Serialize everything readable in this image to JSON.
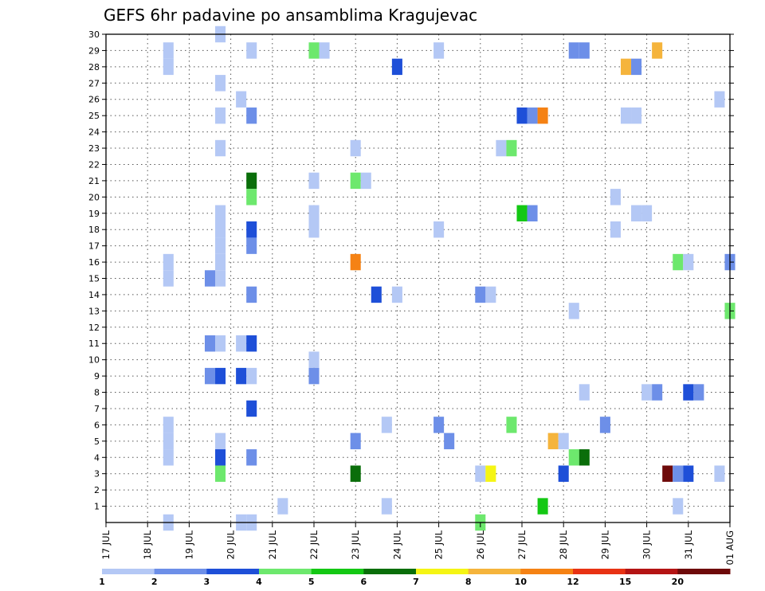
{
  "chart_data": {
    "type": "heatmap",
    "title": "GEFS 6hr padavine po ansamblima Kragujevac",
    "x_tick_labels": [
      "17 JUL",
      "18 JUL",
      "19 JUL",
      "20 JUL",
      "21 JUL",
      "22 JUL",
      "23 JUL",
      "24 JUL",
      "25 JUL",
      "26 JUL",
      "27 JUL",
      "28 JUL",
      "29 JUL",
      "30 JUL",
      "31 JUL",
      "01 AUG"
    ],
    "y_tick_labels": [
      "1",
      "2",
      "3",
      "4",
      "5",
      "6",
      "7",
      "8",
      "9",
      "10",
      "11",
      "12",
      "13",
      "14",
      "15",
      "16",
      "17",
      "18",
      "19",
      "20",
      "21",
      "22",
      "23",
      "24",
      "25",
      "26",
      "27",
      "28",
      "29",
      "30"
    ],
    "x_range_days": [
      0,
      15
    ],
    "y_range": [
      0,
      30
    ],
    "grid": true,
    "colorbar": {
      "labels": [
        "1",
        "2",
        "3",
        "4",
        "5",
        "6",
        "7",
        "8",
        "10",
        "12",
        "15",
        "20"
      ],
      "colors": [
        "#b4c8f5",
        "#6d8fe8",
        "#1e4fd8",
        "#6de86d",
        "#14c814",
        "#0a6e0a",
        "#f5f514",
        "#f5b43c",
        "#f58214",
        "#e83214",
        "#b41414",
        "#6e0a0a"
      ]
    },
    "cells": [
      {
        "d": 1.5,
        "m": 29,
        "c": 0
      },
      {
        "d": 1.5,
        "m": 28,
        "c": 0
      },
      {
        "d": 1.5,
        "m": 16,
        "c": 0
      },
      {
        "d": 1.5,
        "m": 15,
        "c": 0
      },
      {
        "d": 1.5,
        "m": 6,
        "c": 0
      },
      {
        "d": 1.5,
        "m": 5,
        "c": 0
      },
      {
        "d": 1.5,
        "m": 4,
        "c": 0
      },
      {
        "d": 1.5,
        "m": 0,
        "c": 0
      },
      {
        "d": 2.75,
        "m": 30,
        "c": 0
      },
      {
        "d": 2.75,
        "m": 27,
        "c": 0
      },
      {
        "d": 2.75,
        "m": 25,
        "c": 0
      },
      {
        "d": 2.75,
        "m": 23,
        "c": 0
      },
      {
        "d": 2.75,
        "m": 19,
        "c": 0
      },
      {
        "d": 2.75,
        "m": 18,
        "c": 0
      },
      {
        "d": 2.75,
        "m": 17,
        "c": 0
      },
      {
        "d": 2.75,
        "m": 16,
        "c": 0
      },
      {
        "d": 2.75,
        "m": 15,
        "c": 0
      },
      {
        "d": 2.5,
        "m": 15,
        "c": 1
      },
      {
        "d": 2.5,
        "m": 11,
        "c": 1
      },
      {
        "d": 2.75,
        "m": 11,
        "c": 0
      },
      {
        "d": 2.5,
        "m": 9,
        "c": 1
      },
      {
        "d": 2.75,
        "m": 9,
        "c": 2
      },
      {
        "d": 2.75,
        "m": 5,
        "c": 0
      },
      {
        "d": 2.75,
        "m": 4,
        "c": 2
      },
      {
        "d": 2.75,
        "m": 3,
        "c": 3
      },
      {
        "d": 3.25,
        "m": 26,
        "c": 0
      },
      {
        "d": 3.25,
        "m": 11,
        "c": 0
      },
      {
        "d": 3.25,
        "m": 9,
        "c": 2
      },
      {
        "d": 3.25,
        "m": 0,
        "c": 0
      },
      {
        "d": 3.5,
        "m": 29,
        "c": 0
      },
      {
        "d": 3.5,
        "m": 25,
        "c": 1
      },
      {
        "d": 3.5,
        "m": 21,
        "c": 5
      },
      {
        "d": 3.5,
        "m": 20,
        "c": 3
      },
      {
        "d": 3.5,
        "m": 18,
        "c": 2
      },
      {
        "d": 3.5,
        "m": 17,
        "c": 1
      },
      {
        "d": 3.5,
        "m": 14,
        "c": 1
      },
      {
        "d": 3.5,
        "m": 11,
        "c": 2
      },
      {
        "d": 3.5,
        "m": 9,
        "c": 0
      },
      {
        "d": 3.5,
        "m": 7,
        "c": 2
      },
      {
        "d": 3.5,
        "m": 4,
        "c": 1
      },
      {
        "d": 3.5,
        "m": 0,
        "c": 0
      },
      {
        "d": 4.25,
        "m": 1,
        "c": 0
      },
      {
        "d": 5.0,
        "m": 29,
        "c": 3
      },
      {
        "d": 5.25,
        "m": 29,
        "c": 0
      },
      {
        "d": 5.0,
        "m": 21,
        "c": 0
      },
      {
        "d": 5.0,
        "m": 19,
        "c": 0
      },
      {
        "d": 5.0,
        "m": 18,
        "c": 0
      },
      {
        "d": 5.0,
        "m": 10,
        "c": 0
      },
      {
        "d": 5.0,
        "m": 9,
        "c": 1
      },
      {
        "d": 6.0,
        "m": 23,
        "c": 0
      },
      {
        "d": 6.0,
        "m": 21,
        "c": 3
      },
      {
        "d": 6.25,
        "m": 21,
        "c": 0
      },
      {
        "d": 6.0,
        "m": 16,
        "c": 8
      },
      {
        "d": 6.0,
        "m": 5,
        "c": 1
      },
      {
        "d": 6.0,
        "m": 3,
        "c": 5
      },
      {
        "d": 6.5,
        "m": 14,
        "c": 2
      },
      {
        "d": 7.0,
        "m": 28,
        "c": 2
      },
      {
        "d": 7.0,
        "m": 14,
        "c": 0
      },
      {
        "d": 6.75,
        "m": 6,
        "c": 0
      },
      {
        "d": 6.75,
        "m": 1,
        "c": 0
      },
      {
        "d": 8.0,
        "m": 29,
        "c": 0
      },
      {
        "d": 8.0,
        "m": 18,
        "c": 0
      },
      {
        "d": 8.0,
        "m": 6,
        "c": 1
      },
      {
        "d": 8.25,
        "m": 5,
        "c": 1
      },
      {
        "d": 9.0,
        "m": 14,
        "c": 1
      },
      {
        "d": 9.25,
        "m": 14,
        "c": 0
      },
      {
        "d": 9.0,
        "m": 3,
        "c": 0
      },
      {
        "d": 9.25,
        "m": 3,
        "c": 6
      },
      {
        "d": 9.0,
        "m": 0,
        "c": 3
      },
      {
        "d": 9.5,
        "m": 23,
        "c": 0
      },
      {
        "d": 9.75,
        "m": 23,
        "c": 3
      },
      {
        "d": 9.75,
        "m": 6,
        "c": 3
      },
      {
        "d": 10.0,
        "m": 25,
        "c": 2
      },
      {
        "d": 10.25,
        "m": 25,
        "c": 1
      },
      {
        "d": 10.5,
        "m": 25,
        "c": 8
      },
      {
        "d": 10.0,
        "m": 19,
        "c": 4
      },
      {
        "d": 10.25,
        "m": 19,
        "c": 1
      },
      {
        "d": 10.5,
        "m": 1,
        "c": 4
      },
      {
        "d": 10.75,
        "m": 5,
        "c": 7
      },
      {
        "d": 11.0,
        "m": 5,
        "c": 0
      },
      {
        "d": 11.25,
        "m": 4,
        "c": 3
      },
      {
        "d": 11.5,
        "m": 4,
        "c": 5
      },
      {
        "d": 11.0,
        "m": 3,
        "c": 2
      },
      {
        "d": 11.25,
        "m": 29,
        "c": 1
      },
      {
        "d": 11.5,
        "m": 29,
        "c": 1
      },
      {
        "d": 11.25,
        "m": 13,
        "c": 0
      },
      {
        "d": 11.5,
        "m": 8,
        "c": 0
      },
      {
        "d": 12.0,
        "m": 6,
        "c": 1
      },
      {
        "d": 12.25,
        "m": 20,
        "c": 0
      },
      {
        "d": 12.25,
        "m": 18,
        "c": 0
      },
      {
        "d": 12.5,
        "m": 28,
        "c": 7
      },
      {
        "d": 12.75,
        "m": 28,
        "c": 1
      },
      {
        "d": 12.5,
        "m": 25,
        "c": 0
      },
      {
        "d": 12.75,
        "m": 25,
        "c": 0
      },
      {
        "d": 12.75,
        "m": 19,
        "c": 0
      },
      {
        "d": 13.0,
        "m": 19,
        "c": 0
      },
      {
        "d": 13.0,
        "m": 8,
        "c": 0
      },
      {
        "d": 13.25,
        "m": 8,
        "c": 1
      },
      {
        "d": 13.25,
        "m": 29,
        "c": 7
      },
      {
        "d": 13.5,
        "m": 3,
        "c": 11
      },
      {
        "d": 13.75,
        "m": 3,
        "c": 1
      },
      {
        "d": 14.0,
        "m": 3,
        "c": 2
      },
      {
        "d": 13.75,
        "m": 1,
        "c": 0
      },
      {
        "d": 13.75,
        "m": 16,
        "c": 3
      },
      {
        "d": 14.0,
        "m": 16,
        "c": 0
      },
      {
        "d": 14.0,
        "m": 8,
        "c": 2
      },
      {
        "d": 14.25,
        "m": 8,
        "c": 1
      },
      {
        "d": 14.75,
        "m": 26,
        "c": 0
      },
      {
        "d": 15.0,
        "m": 16,
        "c": 1
      },
      {
        "d": 15.0,
        "m": 13,
        "c": 3
      },
      {
        "d": 14.75,
        "m": 3,
        "c": 0
      }
    ]
  }
}
